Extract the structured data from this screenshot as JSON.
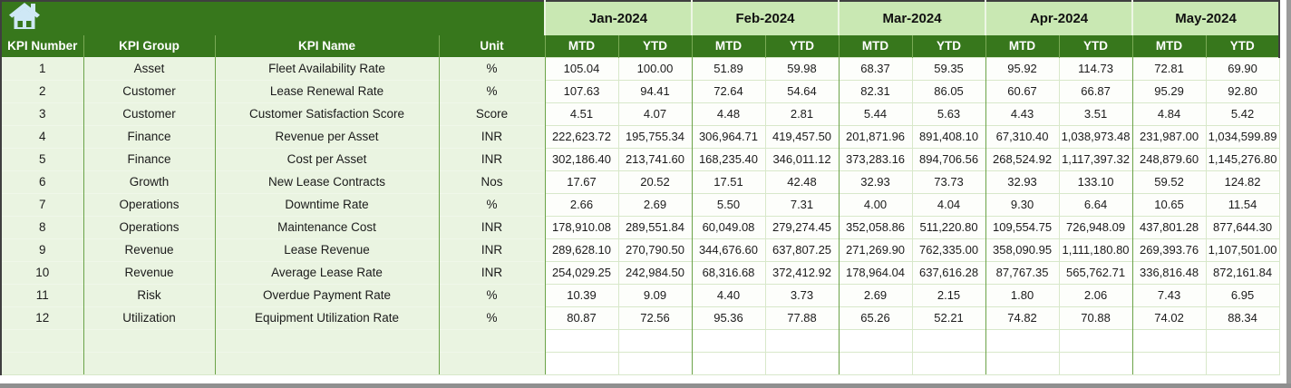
{
  "colors": {
    "dark_green": "#37771c",
    "light_green": "#c9e8b3",
    "row_green": "#eaf4e1",
    "cell_white": "#fdfefb",
    "border_green": "#6ba348",
    "grid_light": "#d8e8ca",
    "outline_dark": "#3f3f3f",
    "icon_blue": "#cfe8f6",
    "scrollbar_gray": "#9b9b9b",
    "text_dark": "#1b1b1b"
  },
  "icons": {
    "home_icon": "house-with-chimney-shape"
  },
  "table": {
    "months": [
      "Jan-2024",
      "Feb-2024",
      "Mar-2024",
      "Apr-2024",
      "May-2024"
    ],
    "sub_headers": [
      "MTD",
      "YTD"
    ],
    "label_columns": [
      "KPI Number",
      "KPI Group",
      "KPI Name",
      "Unit"
    ],
    "empty_row_count": 2,
    "rows": [
      {
        "number": "1",
        "group": "Asset",
        "name": "Fleet Availability Rate",
        "unit": "%",
        "values": [
          "105.04",
          "100.00",
          "51.89",
          "59.98",
          "68.37",
          "59.35",
          "95.92",
          "114.73",
          "72.81",
          "69.90"
        ]
      },
      {
        "number": "2",
        "group": "Customer",
        "name": "Lease Renewal Rate",
        "unit": "%",
        "values": [
          "107.63",
          "94.41",
          "72.64",
          "54.64",
          "82.31",
          "86.05",
          "60.67",
          "66.87",
          "95.29",
          "92.80"
        ]
      },
      {
        "number": "3",
        "group": "Customer",
        "name": "Customer Satisfaction Score",
        "unit": "Score",
        "values": [
          "4.51",
          "4.07",
          "4.48",
          "2.81",
          "5.44",
          "5.63",
          "4.43",
          "3.51",
          "4.84",
          "5.42"
        ]
      },
      {
        "number": "4",
        "group": "Finance",
        "name": "Revenue per Asset",
        "unit": "INR",
        "values": [
          "222,623.72",
          "195,755.34",
          "306,964.71",
          "419,457.50",
          "201,871.96",
          "891,408.10",
          "67,310.40",
          "1,038,973.48",
          "231,987.00",
          "1,034,599.89"
        ]
      },
      {
        "number": "5",
        "group": "Finance",
        "name": "Cost per Asset",
        "unit": "INR",
        "values": [
          "302,186.40",
          "213,741.60",
          "168,235.40",
          "346,011.12",
          "373,283.16",
          "894,706.56",
          "268,524.92",
          "1,117,397.32",
          "248,879.60",
          "1,145,276.80"
        ]
      },
      {
        "number": "6",
        "group": "Growth",
        "name": "New Lease Contracts",
        "unit": "Nos",
        "values": [
          "17.67",
          "20.52",
          "17.51",
          "42.48",
          "32.93",
          "73.73",
          "32.93",
          "133.10",
          "59.52",
          "124.82"
        ]
      },
      {
        "number": "7",
        "group": "Operations",
        "name": "Downtime Rate",
        "unit": "%",
        "values": [
          "2.66",
          "2.69",
          "5.50",
          "7.31",
          "4.00",
          "4.04",
          "9.30",
          "6.64",
          "10.65",
          "11.54"
        ]
      },
      {
        "number": "8",
        "group": "Operations",
        "name": "Maintenance Cost",
        "unit": "INR",
        "values": [
          "178,910.08",
          "289,551.84",
          "60,049.08",
          "279,274.45",
          "352,058.86",
          "511,220.80",
          "109,554.75",
          "726,948.09",
          "437,801.28",
          "877,644.30"
        ]
      },
      {
        "number": "9",
        "group": "Revenue",
        "name": "Lease Revenue",
        "unit": "INR",
        "values": [
          "289,628.10",
          "270,790.50",
          "344,676.60",
          "637,807.25",
          "271,269.90",
          "762,335.00",
          "358,090.95",
          "1,111,180.80",
          "269,393.76",
          "1,107,501.00"
        ]
      },
      {
        "number": "10",
        "group": "Revenue",
        "name": "Average Lease Rate",
        "unit": "INR",
        "values": [
          "254,029.25",
          "242,984.50",
          "68,316.68",
          "372,412.92",
          "178,964.04",
          "637,616.28",
          "87,767.35",
          "565,762.71",
          "336,816.48",
          "872,161.84"
        ]
      },
      {
        "number": "11",
        "group": "Risk",
        "name": "Overdue Payment Rate",
        "unit": "%",
        "values": [
          "10.39",
          "9.09",
          "4.40",
          "3.73",
          "2.69",
          "2.15",
          "1.80",
          "2.06",
          "7.43",
          "6.95"
        ]
      },
      {
        "number": "12",
        "group": "Utilization",
        "name": "Equipment Utilization Rate",
        "unit": "%",
        "values": [
          "80.87",
          "72.56",
          "95.36",
          "77.88",
          "65.26",
          "52.21",
          "74.82",
          "70.88",
          "74.02",
          "88.34"
        ]
      }
    ]
  }
}
